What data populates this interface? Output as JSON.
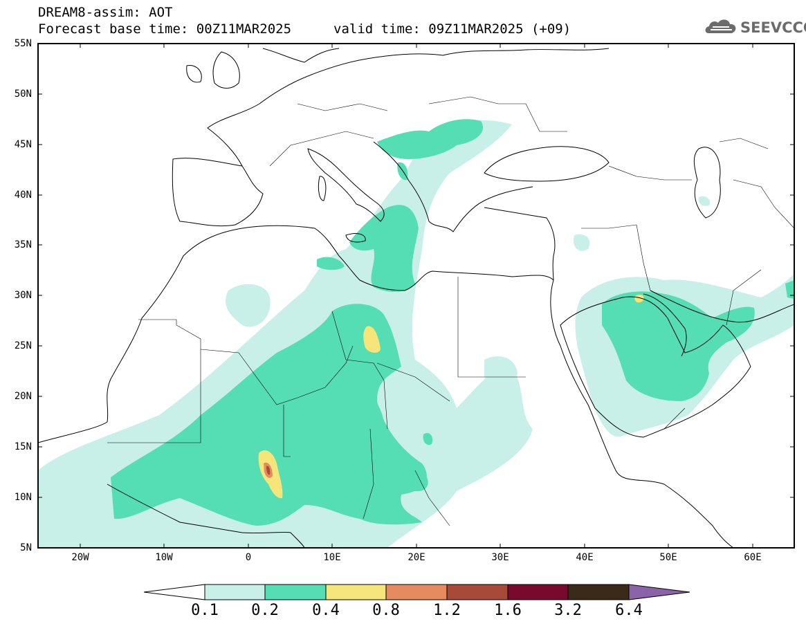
{
  "header": {
    "model_title": "DREAM8-assim: AOT",
    "forecast_base": "Forecast base time: 00Z11MAR2025",
    "valid_time": "valid time: 09Z11MAR2025 (+09)",
    "logo_text": "SEEVCCC"
  },
  "axes": {
    "lat_labels": [
      "55N",
      "50N",
      "45N",
      "40N",
      "35N",
      "30N",
      "25N",
      "20N",
      "15N",
      "10N",
      "5N"
    ],
    "lon_labels": [
      "20W",
      "10W",
      "0",
      "10E",
      "20E",
      "30E",
      "40E",
      "50E",
      "60E"
    ],
    "lon_range": [
      -25,
      65
    ],
    "lat_range": [
      5,
      55
    ]
  },
  "colorbar": {
    "labels": [
      "0.1",
      "0.2",
      "0.4",
      "0.8",
      "1.2",
      "1.6",
      "3.2",
      "6.4"
    ],
    "colors": [
      "#ffffff",
      "#c8f0e8",
      "#55ddb3",
      "#f5e57a",
      "#e68a5f",
      "#a84a3a",
      "#7a0a2d",
      "#3b2a1a",
      "#8a63a8"
    ]
  },
  "aot_colors": {
    "low": "#c8f0e8",
    "moderate": "#55ddb3",
    "high": "#f5e57a",
    "very_high": "#e68a5f",
    "extreme": "#a84a3a"
  }
}
